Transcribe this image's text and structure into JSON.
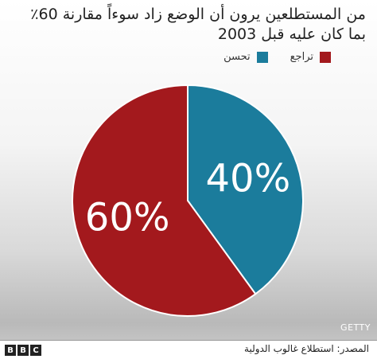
{
  "chart_data": {
    "type": "pie",
    "title": [
      "من المستطلعين يرون أن الوضع زاد سوءاً مقارنة 60٪",
      "بما كان عليه قبل 2003"
    ],
    "categories": [
      "تحسن",
      "تراجع"
    ],
    "values": [
      40,
      60
    ],
    "value_labels": [
      "40%",
      "60%"
    ],
    "colors": [
      "#1b7c9c",
      "#a3191d"
    ],
    "legend": "top-right",
    "credit": "GETTY",
    "source": "المصدر: استطلاع غالوب الدولية",
    "logo": [
      "B",
      "B",
      "C"
    ]
  }
}
